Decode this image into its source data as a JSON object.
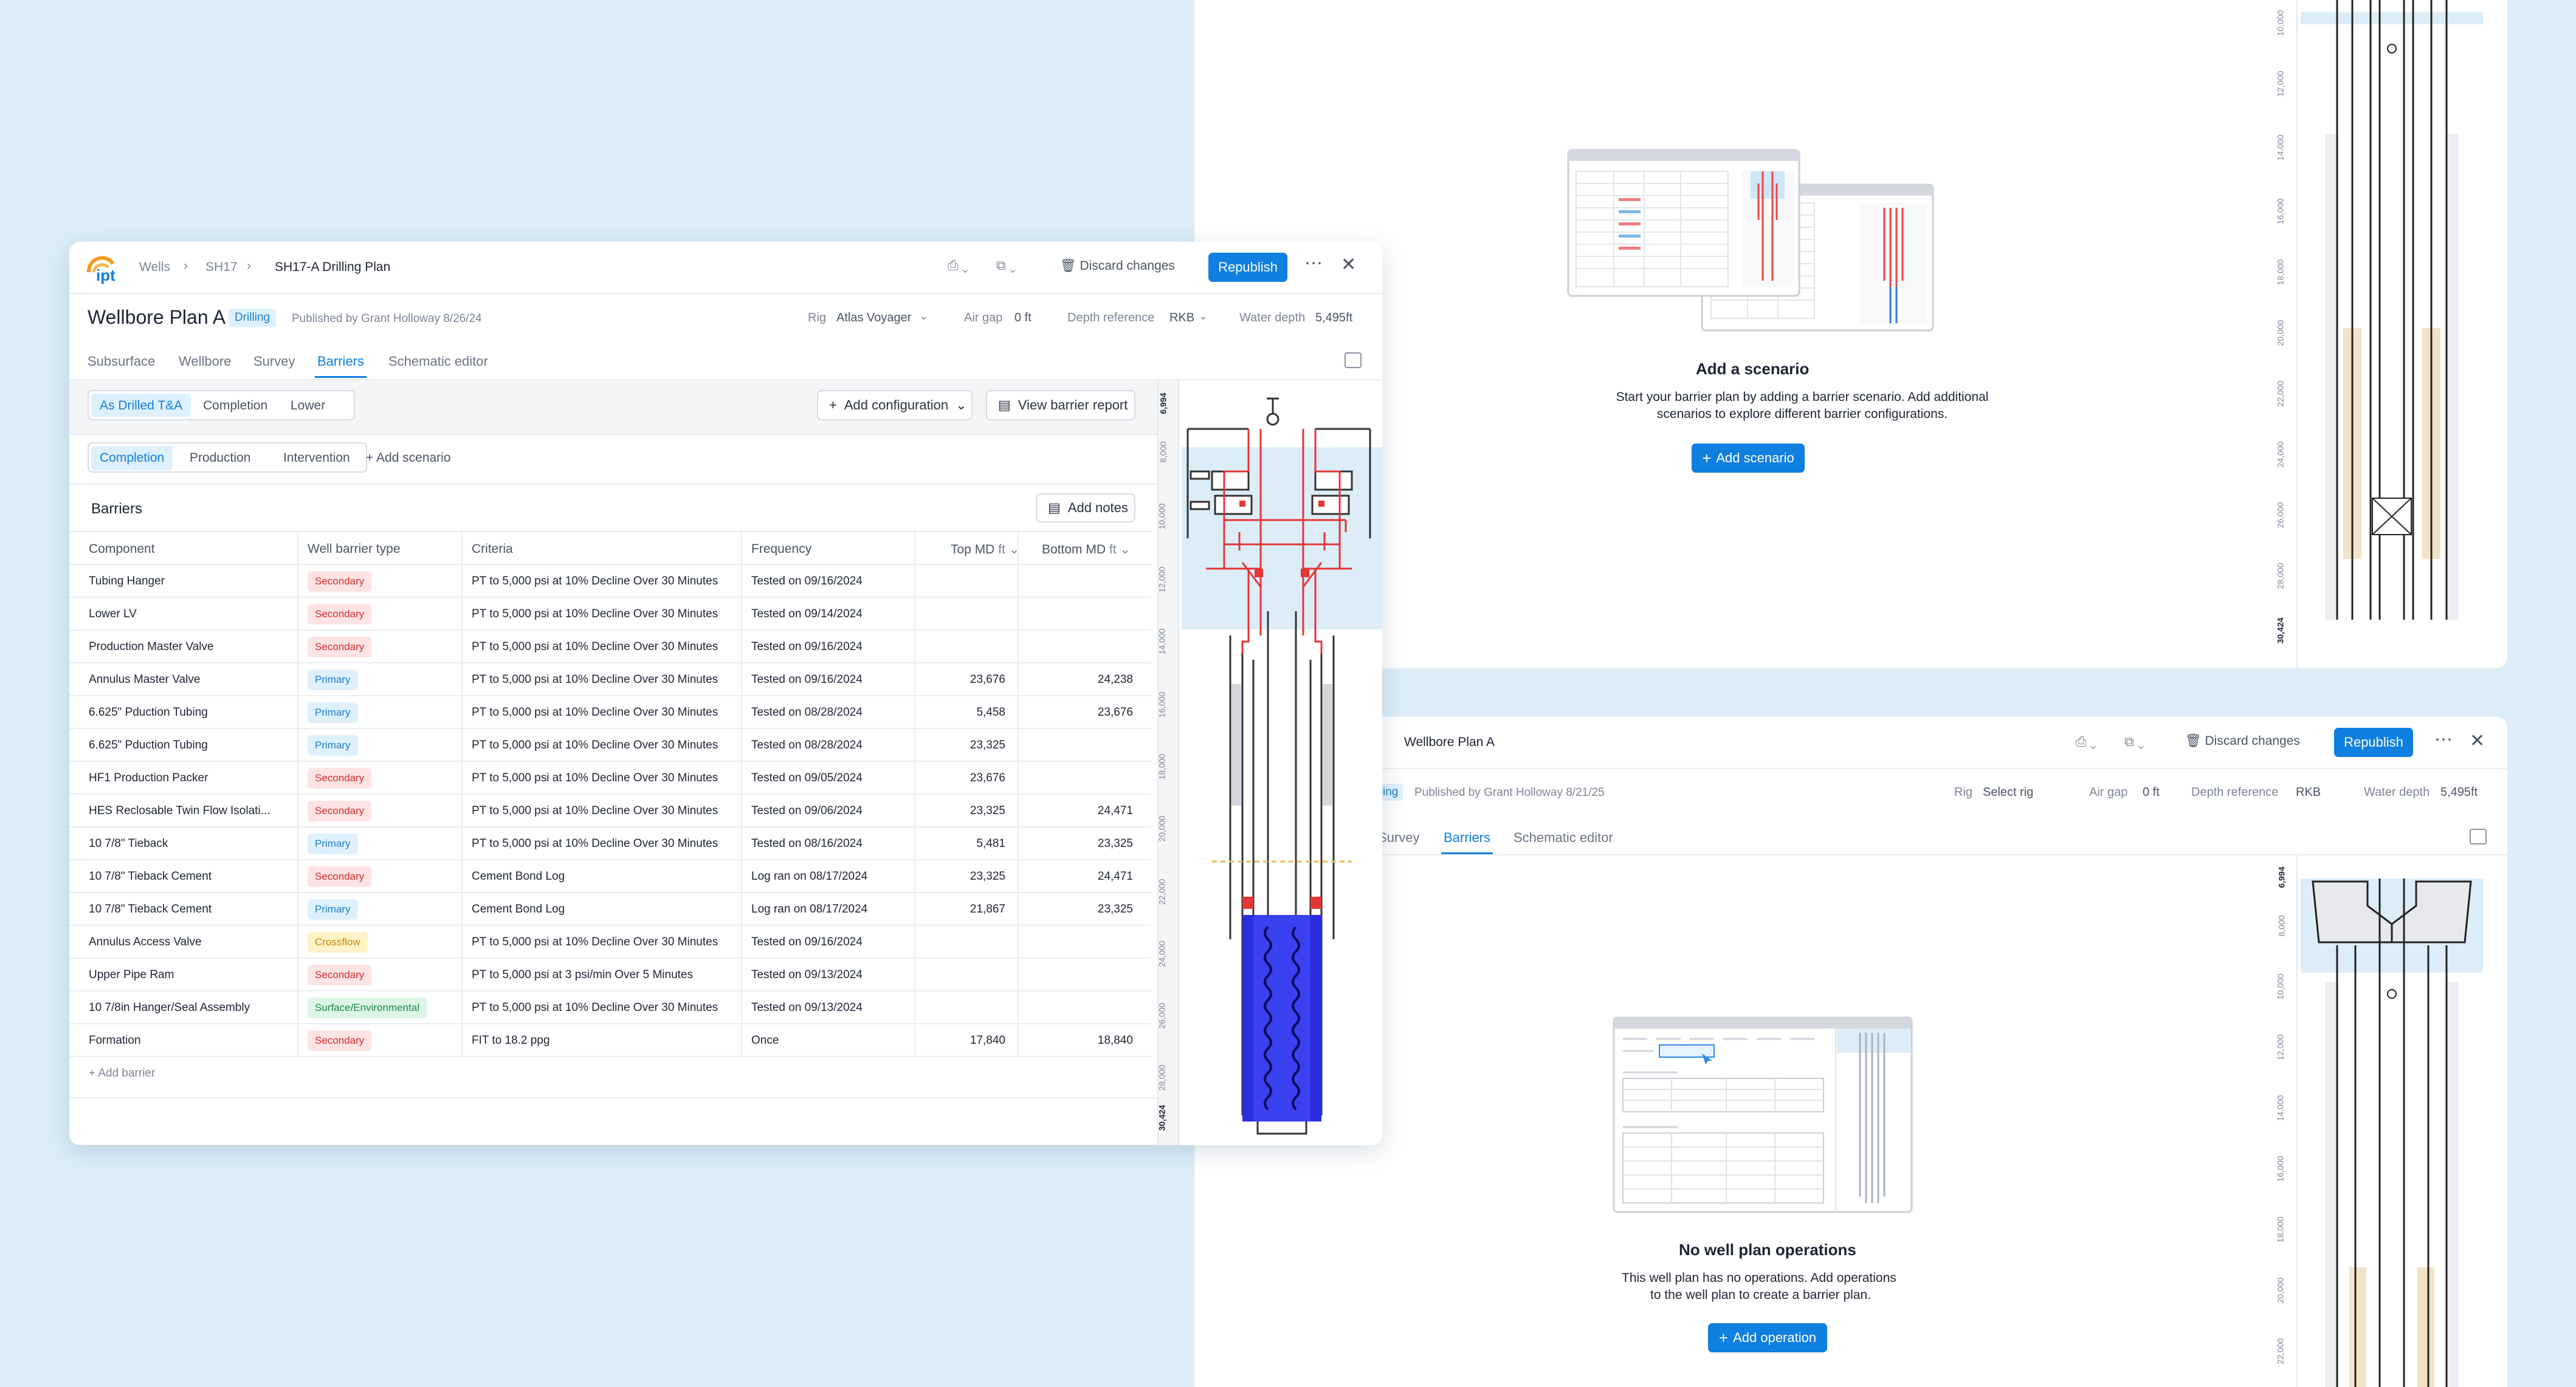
{
  "main": {
    "logo": "ipt",
    "breadcrumb": [
      "Wells",
      "SH17",
      "SH17-A Drilling Plan"
    ],
    "discard_label": "Discard changes",
    "republish_label": "Republish",
    "title": "Wellbore Plan A",
    "status_badge": "Drilling",
    "published_by": "Published by Grant Holloway 8/26/24",
    "rig_label": "Rig",
    "rig_value": "Atlas Voyager",
    "air_gap_label": "Air gap",
    "air_gap_value": "0 ft",
    "depth_ref_label": "Depth reference",
    "depth_ref_value": "RKB",
    "water_depth_label": "Water depth",
    "water_depth_value": "5,495ft",
    "tabs": [
      "Subsurface",
      "Wellbore",
      "Survey",
      "Barriers",
      "Schematic editor"
    ],
    "config_segments": [
      "As Drilled T&A",
      "Completion",
      "Lower"
    ],
    "add_configuration_label": "Add configuration",
    "view_report_label": "View barrier report",
    "scenario_tabs": [
      "Completion",
      "Production",
      "Intervention"
    ],
    "add_scenario_link": "+ Add scenario",
    "barriers_title": "Barriers",
    "add_notes_label": "Add notes",
    "columns": [
      "Component",
      "Well barrier type",
      "Criteria",
      "Frequency",
      "Top MD",
      "Bottom MD"
    ],
    "unit": "ft",
    "rows": [
      {
        "component": "Tubing Hanger",
        "type": "Secondary",
        "kind": "sec",
        "criteria": "PT to 5,000 psi at 10% Decline Over 30 Minutes",
        "frequency": "Tested on 09/16/2024",
        "top": "",
        "bottom": ""
      },
      {
        "component": "Lower LV",
        "type": "Secondary",
        "kind": "sec",
        "criteria": "PT to 5,000 psi at 10% Decline Over 30 Minutes",
        "frequency": "Tested on 09/14/2024",
        "top": "",
        "bottom": ""
      },
      {
        "component": "Production Master Valve",
        "type": "Secondary",
        "kind": "sec",
        "criteria": "PT to 5,000 psi at 10% Decline Over 30 Minutes",
        "frequency": "Tested on 09/16/2024",
        "top": "",
        "bottom": ""
      },
      {
        "component": "Annulus Master Valve",
        "type": "Primary",
        "kind": "pri",
        "criteria": "PT to 5,000 psi at 10% Decline Over 30 Minutes",
        "frequency": "Tested on 09/16/2024",
        "top": "23,676",
        "bottom": "24,238"
      },
      {
        "component": "6.625\" Pduction Tubing",
        "type": "Primary",
        "kind": "pri",
        "criteria": "PT to 5,000 psi at 10% Decline Over 30 Minutes",
        "frequency": "Tested on 08/28/2024",
        "top": "5,458",
        "bottom": "23,676"
      },
      {
        "component": "6.625\" Pduction Tubing",
        "type": "Primary",
        "kind": "pri",
        "criteria": "PT to 5,000 psi at 10% Decline Over 30 Minutes",
        "frequency": "Tested on 08/28/2024",
        "top": "23,325",
        "bottom": ""
      },
      {
        "component": "HF1 Production Packer",
        "type": "Secondary",
        "kind": "sec",
        "criteria": "PT to 5,000 psi at 10% Decline Over 30 Minutes",
        "frequency": "Tested on 09/05/2024",
        "top": "23,676",
        "bottom": ""
      },
      {
        "component": "HES Reclosable Twin Flow Isolati...",
        "type": "Secondary",
        "kind": "sec",
        "criteria": "PT to 5,000 psi at 10% Decline Over 30 Minutes",
        "frequency": "Tested on 09/06/2024",
        "top": "23,325",
        "bottom": "24,471"
      },
      {
        "component": "10 7/8\" Tieback",
        "type": "Primary",
        "kind": "pri",
        "criteria": "PT to 5,000 psi at 10% Decline Over 30 Minutes",
        "frequency": "Tested on 08/16/2024",
        "top": "5,481",
        "bottom": "23,325"
      },
      {
        "component": "10 7/8\" Tieback  Cement",
        "type": "Secondary",
        "kind": "sec",
        "criteria": "Cement Bond Log",
        "frequency": "Log ran on 08/17/2024",
        "top": "23,325",
        "bottom": "24,471"
      },
      {
        "component": "10 7/8\" Tieback  Cement",
        "type": "Primary",
        "kind": "pri",
        "criteria": "Cement Bond Log",
        "frequency": "Log ran on 08/17/2024",
        "top": "21,867",
        "bottom": "23,325"
      },
      {
        "component": "Annulus Access Valve",
        "type": "Crossflow",
        "kind": "cross",
        "criteria": "PT to 5,000 psi at 10% Decline Over 30 Minutes",
        "frequency": "Tested on 09/16/2024",
        "top": "",
        "bottom": ""
      },
      {
        "component": "Upper Pipe Ram",
        "type": "Secondary",
        "kind": "sec",
        "criteria": "PT to 5,000 psi at 3 psi/min Over 5 Minutes",
        "frequency": "Tested on 09/13/2024",
        "top": "",
        "bottom": ""
      },
      {
        "component": "10 7/8in Hanger/Seal Assembly",
        "type": "Surface/Environmental",
        "kind": "env",
        "criteria": "PT to 5,000 psi at 10% Decline Over 30 Minutes",
        "frequency": "Tested on 09/13/2024",
        "top": "",
        "bottom": ""
      },
      {
        "component": "Formation",
        "type": "Secondary",
        "kind": "sec",
        "criteria": "FIT to 18.2 ppg",
        "frequency": "Once",
        "top": "17,840",
        "bottom": "18,840"
      }
    ],
    "add_barrier_link": "+ Add barrier",
    "depth_ticks": [
      "6,994",
      "8,000",
      "10,000",
      "12,000",
      "14,000",
      "16,000",
      "18,000",
      "20,000",
      "22,000",
      "24,000",
      "26,000",
      "28,000",
      "30,424"
    ]
  },
  "top_right": {
    "empty_title": "Add a scenario",
    "empty_text_1": "Start your barrier plan by adding a barrier scenario. Add additional",
    "empty_text_2": "scenarios to explore different barrier configurations.",
    "button_label": "Add scenario",
    "depth_ticks": [
      "10,000",
      "12,000",
      "14,000",
      "16,000",
      "18,000",
      "20,000",
      "22,000",
      "24,000",
      "26,000",
      "28,000",
      "30,424"
    ]
  },
  "bottom_right": {
    "breadcrumb_current": "Wellbore Plan A",
    "discard_label": "Discard changes",
    "republish_label": "Republish",
    "status_partial": "ing",
    "published_by": "Published by Grant Holloway 8/21/25",
    "rig_label": "Rig",
    "rig_value": "Select rig",
    "air_gap_label": "Air gap",
    "air_gap_value": "0 ft",
    "depth_ref_label": "Depth reference",
    "depth_ref_value": "RKB",
    "water_depth_label": "Water depth",
    "water_depth_value": "5,495ft",
    "tabs": [
      "Survey",
      "Barriers",
      "Schematic editor"
    ],
    "empty_title": "No well plan operations",
    "empty_text_1": "This well plan has no operations. Add operations",
    "empty_text_2": "to the well plan to create a barrier plan.",
    "button_label": "Add operation",
    "depth_ticks": [
      "6,994",
      "8,000",
      "10,000",
      "12,000",
      "14,000",
      "16,000",
      "18,000",
      "20,000",
      "22,000"
    ]
  },
  "colors": {
    "accent": "#0f7fe0",
    "secondary": "#d12d2d",
    "primary": "#1a7fd0",
    "crossflow": "#c58a00",
    "environmental": "#1d8a4a",
    "background": "#dcedf8"
  }
}
